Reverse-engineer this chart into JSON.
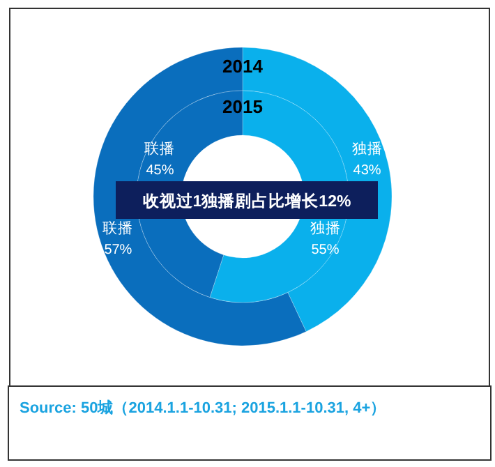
{
  "chart_data": [
    {
      "type": "donut",
      "title": "2014",
      "categories": [
        "独播",
        "联播"
      ],
      "values": [
        43,
        57
      ],
      "colors": [
        "#0ab0ec",
        "#0a6ebd"
      ],
      "value_labels": [
        "43%",
        "57%"
      ],
      "annotations": [
        "收视过1独播剧占比增长12%",
        "Source: 50城（2014.1.1-10.31; 2015.1.1-10.31, 4+）"
      ]
    },
    {
      "type": "donut",
      "title": "2015",
      "categories": [
        "独播",
        "联播"
      ],
      "values": [
        55,
        45
      ],
      "colors": [
        "#0ab0ec",
        "#0a6ebd"
      ],
      "value_labels": [
        "55%",
        "45%"
      ]
    }
  ]
}
